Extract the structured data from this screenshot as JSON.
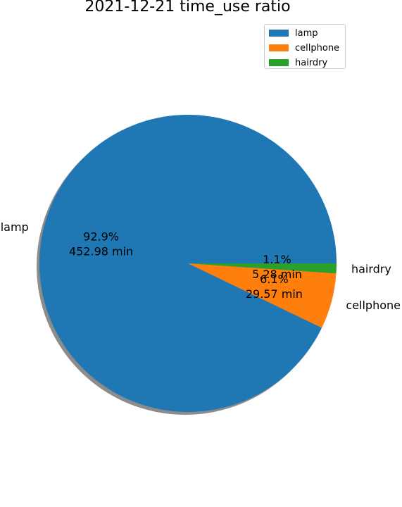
{
  "chart_data": {
    "type": "pie",
    "title": "2021-12-21 time_use ratio",
    "categories": [
      "lamp",
      "cellphone",
      "hairdry"
    ],
    "values": [
      452.98,
      29.57,
      5.28
    ],
    "percent_labels": [
      "92.9%",
      "6.1%",
      "1.1%"
    ],
    "value_labels": [
      "452.98 min",
      "29.57 min",
      "5.28 min"
    ],
    "colors": [
      "#1f77b4",
      "#ff7f0e",
      "#2ca02c"
    ],
    "shadow": true,
    "legend_position": "top-right"
  }
}
